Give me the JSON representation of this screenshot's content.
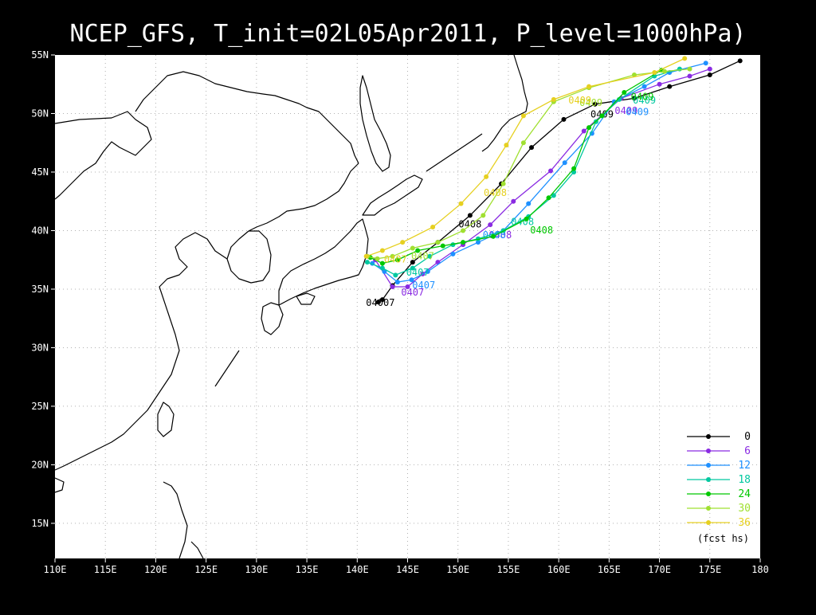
{
  "title": "NCEP_GFS,    T_init=02L05Apr2011,    P_level=1000hPa)",
  "colors": {
    "background": "#000000",
    "plot_area": "#ffffff",
    "coast": "#000000",
    "grid": "#b0b0b0",
    "axis_text": "#ffffff"
  },
  "axes": {
    "x_ticks": [
      "110E",
      "115E",
      "120E",
      "125E",
      "130E",
      "135E",
      "140E",
      "145E",
      "150E",
      "155E",
      "160E",
      "165E",
      "170E",
      "175E",
      "180"
    ],
    "y_ticks": [
      "15N",
      "20N",
      "25N",
      "30N",
      "35N",
      "40N",
      "45N",
      "50N",
      "55N"
    ]
  },
  "legend": {
    "entries": [
      {
        "label": "0",
        "color": "#000000"
      },
      {
        "label": "6",
        "color": "#8a2be2"
      },
      {
        "label": "12",
        "color": "#1e90ff"
      },
      {
        "label": "18",
        "color": "#00c8a0"
      },
      {
        "label": "24",
        "color": "#00c800"
      },
      {
        "label": "30",
        "color": "#a0e030"
      },
      {
        "label": "36",
        "color": "#e6d020"
      }
    ],
    "caption": "(fcst hs)"
  },
  "chart_data": {
    "type": "line",
    "x_axis": "longitude (deg E)",
    "y_axis": "latitude (deg N)",
    "xlim": [
      110,
      180
    ],
    "ylim": [
      12,
      55
    ],
    "grid": true,
    "legend_placement": "bottom-right",
    "series": [
      {
        "name": "0",
        "color": "#000000",
        "points": [
          [
            142.1,
            33.9
          ],
          [
            142.5,
            34.1
          ],
          [
            143.5,
            35.3
          ],
          [
            145.5,
            37.3
          ],
          [
            148,
            39.0
          ],
          [
            151.2,
            41.3
          ],
          [
            154.3,
            44.0
          ],
          [
            157.3,
            47.1
          ],
          [
            160.5,
            49.5
          ],
          [
            163.6,
            50.8
          ],
          [
            167.5,
            51.3
          ],
          [
            171,
            52.3
          ],
          [
            175,
            53.3
          ],
          [
            178,
            54.5
          ]
        ],
        "labels": [
          {
            "text": "04007",
            "lon": 142.3,
            "lat": 33.9
          },
          {
            "text": "0408",
            "lon": 151.2,
            "lat": 40.6
          },
          {
            "text": "0409",
            "lon": 164.3,
            "lat": 50.0
          }
        ]
      },
      {
        "name": "6",
        "color": "#8a2be2",
        "points": [
          [
            141.8,
            37.5
          ],
          [
            143.5,
            35.2
          ],
          [
            145,
            35.2
          ],
          [
            146.5,
            36.3
          ],
          [
            148,
            37.3
          ],
          [
            150.5,
            38.8
          ],
          [
            153.2,
            40.5
          ],
          [
            155.5,
            42.5
          ],
          [
            159.2,
            45.1
          ],
          [
            162.5,
            48.5
          ],
          [
            166.2,
            51.3
          ],
          [
            170,
            52.5
          ],
          [
            173,
            53.2
          ],
          [
            175,
            53.8
          ]
        ],
        "labels": [
          {
            "text": "0407",
            "lon": 145.5,
            "lat": 34.8
          },
          {
            "text": "0408",
            "lon": 154.2,
            "lat": 39.7
          },
          {
            "text": "0409",
            "lon": 166.7,
            "lat": 50.3
          }
        ]
      },
      {
        "name": "12",
        "color": "#1e90ff",
        "points": [
          [
            141.5,
            37.2
          ],
          [
            142.7,
            36.5
          ],
          [
            144,
            35.6
          ],
          [
            145.4,
            35.8
          ],
          [
            147,
            36.5
          ],
          [
            149.5,
            38.0
          ],
          [
            152,
            39.0
          ],
          [
            154.5,
            40.0
          ],
          [
            157,
            42.3
          ],
          [
            160.6,
            45.8
          ],
          [
            163.3,
            48.3
          ],
          [
            165.5,
            51.0
          ],
          [
            168.5,
            52.3
          ],
          [
            171,
            53.5
          ],
          [
            174.6,
            54.3
          ]
        ],
        "labels": [
          {
            "text": "0407",
            "lon": 146.6,
            "lat": 35.4
          },
          {
            "text": "0408",
            "lon": 153.6,
            "lat": 39.7
          },
          {
            "text": "0409",
            "lon": 167.8,
            "lat": 50.2
          }
        ]
      },
      {
        "name": "18",
        "color": "#00c8a0",
        "points": [
          [
            141,
            37.3
          ],
          [
            142.5,
            36.8
          ],
          [
            143.8,
            36.2
          ],
          [
            145.5,
            36.8
          ],
          [
            147.2,
            37.8
          ],
          [
            149.5,
            38.8
          ],
          [
            152,
            39.3
          ],
          [
            154.5,
            40.0
          ],
          [
            157,
            41.2
          ],
          [
            159.5,
            43.0
          ],
          [
            161.5,
            45.0
          ],
          [
            163.7,
            49.3
          ],
          [
            166,
            51.2
          ],
          [
            169.5,
            53.2
          ],
          [
            172,
            53.8
          ]
        ],
        "labels": [
          {
            "text": "0407",
            "lon": 146.0,
            "lat": 36.5
          },
          {
            "text": "0408",
            "lon": 156.4,
            "lat": 40.8
          },
          {
            "text": "0409",
            "lon": 168.5,
            "lat": 51.2
          }
        ]
      },
      {
        "name": "24",
        "color": "#00c800",
        "points": [
          [
            141.3,
            37.7
          ],
          [
            142.5,
            37.2
          ],
          [
            144,
            37.5
          ],
          [
            146,
            38.3
          ],
          [
            148.5,
            38.7
          ],
          [
            150.5,
            39.0
          ],
          [
            153.5,
            39.5
          ],
          [
            156.8,
            41.0
          ],
          [
            159,
            42.8
          ],
          [
            161.5,
            45.3
          ],
          [
            163,
            48.8
          ],
          [
            164.3,
            49.8
          ],
          [
            166.5,
            51.8
          ],
          [
            170.2,
            53.7
          ]
        ],
        "labels": [
          {
            "text": "0408",
            "lon": 158.3,
            "lat": 40.1
          },
          {
            "text": "0409",
            "lon": 168.3,
            "lat": 51.5
          }
        ]
      },
      {
        "name": "30",
        "color": "#a0e030",
        "points": [
          [
            141,
            37.8
          ],
          [
            142,
            37.6
          ],
          [
            143.5,
            37.8
          ],
          [
            145.5,
            38.5
          ],
          [
            148,
            39.0
          ],
          [
            150.5,
            40.0
          ],
          [
            152.5,
            41.3
          ],
          [
            154.5,
            44.0
          ],
          [
            156.5,
            47.5
          ],
          [
            159.5,
            51.0
          ],
          [
            163,
            52.2
          ],
          [
            167.5,
            53.3
          ],
          [
            170.5,
            53.6
          ],
          [
            173,
            53.8
          ]
        ],
        "labels": [
          {
            "text": "0407",
            "lon": 146.5,
            "lat": 37.9
          },
          {
            "text": "0409",
            "lon": 163.2,
            "lat": 51.0
          }
        ]
      },
      {
        "name": "36",
        "color": "#e6d020",
        "points": [
          [
            140.9,
            37.8
          ],
          [
            142.5,
            38.3
          ],
          [
            144.5,
            39.0
          ],
          [
            147.5,
            40.3
          ],
          [
            150.3,
            42.3
          ],
          [
            152.8,
            44.6
          ],
          [
            154.8,
            47.3
          ],
          [
            156.5,
            49.8
          ],
          [
            159.5,
            51.2
          ],
          [
            163,
            52.3
          ],
          [
            169.5,
            53.5
          ],
          [
            172.5,
            54.7
          ]
        ],
        "labels": [
          {
            "text": "0407",
            "lon": 143.8,
            "lat": 37.6
          },
          {
            "text": "0408",
            "lon": 153.7,
            "lat": 43.3
          },
          {
            "text": "0409",
            "lon": 162.1,
            "lat": 51.2
          }
        ]
      }
    ]
  }
}
